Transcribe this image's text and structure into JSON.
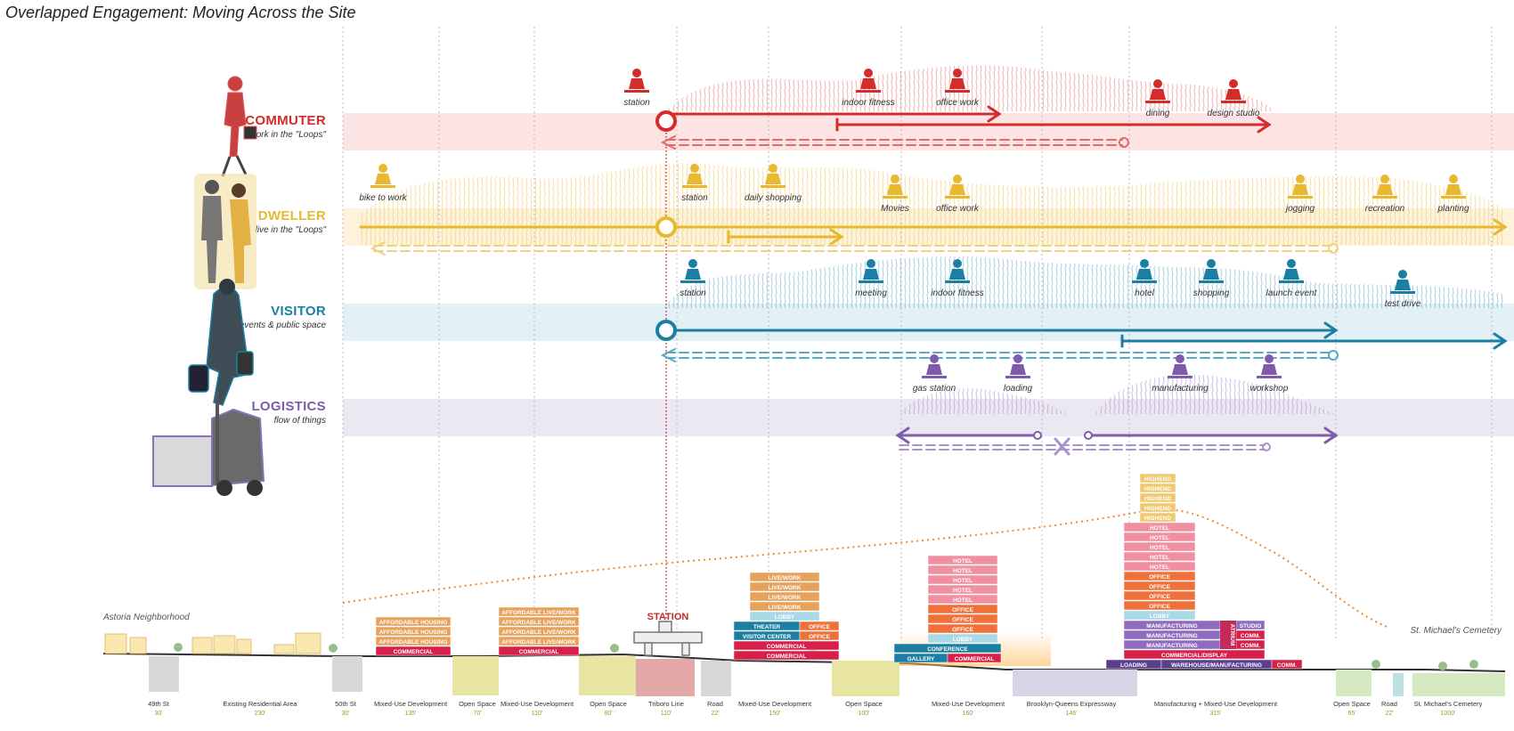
{
  "title": "Overlapped Engagement: Moving Across the Site",
  "colors": {
    "commuter": "#d42b2b",
    "dweller": "#e8b830",
    "visitor": "#1a7fa3",
    "logistics": "#7e5cab",
    "station_line": "#d42b2b",
    "orange_dots": "#f08a2c"
  },
  "personas": [
    {
      "id": "commuter",
      "name": "COMMUTER",
      "subtitle": "work in the \"Loops\"",
      "icon": "walking-woman-icon",
      "color": "#d42b2b",
      "activities": [
        {
          "label": "station",
          "icon": "train-icon"
        },
        {
          "label": "indoor fitness",
          "icon": "pushup-icon"
        },
        {
          "label": "office work",
          "icon": "desk-worker-icon"
        },
        {
          "label": "dining",
          "icon": "dining-icon"
        },
        {
          "label": "design studio",
          "icon": "gear-head-icon"
        }
      ]
    },
    {
      "id": "dweller",
      "name": "DWELLER",
      "subtitle": "live in the \"Loops\"",
      "icon": "walking-couple-icon",
      "color": "#e8b830",
      "activities": [
        {
          "label": "bike to work",
          "icon": "bike-icon"
        },
        {
          "label": "station",
          "icon": "train-icon"
        },
        {
          "label": "daily shopping",
          "icon": "shopper-icon"
        },
        {
          "label": "Movies",
          "icon": "movie-audience-icon"
        },
        {
          "label": "office work",
          "icon": "desk-worker-icon"
        },
        {
          "label": "jogging",
          "icon": "jogger-icon"
        },
        {
          "label": "recreation",
          "icon": "recreation-icon"
        },
        {
          "label": "planting",
          "icon": "planting-icon"
        }
      ]
    },
    {
      "id": "visitor",
      "name": "VISITOR",
      "subtitle": "events & public space",
      "icon": "traveler-icon",
      "color": "#1a7fa3",
      "activities": [
        {
          "label": "station",
          "icon": "passengers-icon"
        },
        {
          "label": "meeting",
          "icon": "meeting-icon"
        },
        {
          "label": "indoor fitness",
          "icon": "weightlifter-icon"
        },
        {
          "label": "hotel",
          "icon": "bed-icon"
        },
        {
          "label": "shopping",
          "icon": "shopping-bag-icon"
        },
        {
          "label": "launch event",
          "icon": "presenter-icon"
        },
        {
          "label": "test drive",
          "icon": "car-driver-icon"
        }
      ]
    },
    {
      "id": "logistics",
      "name": "LOGISTICS",
      "subtitle": "flow of things",
      "icon": "forklift-icon",
      "color": "#7e5cab",
      "activities": [
        {
          "label": "gas station",
          "icon": "gas-car-icon"
        },
        {
          "label": "loading",
          "icon": "loading-icon"
        },
        {
          "label": "manufacturing",
          "icon": "gears-icon"
        },
        {
          "label": "workshop",
          "icon": "workshop-icon"
        }
      ]
    }
  ],
  "section": {
    "left_label": "Astoria Neighborhood",
    "right_label": "St. Michael's Cemetery",
    "station_label": "STATION",
    "buildings": [
      {
        "floors": [
          "AFFORDABLE HOUSING",
          "AFFORDABLE HOUSING",
          "AFFORDABLE HOUSING",
          "COMMERCIAL"
        ]
      },
      {
        "floors": [
          "AFFORDABLE LIVE/WORK",
          "AFFORDABLE LIVE/WORK",
          "AFFORDABLE LIVE/WORK",
          "AFFORDABLE LIVE/WORK",
          "COMMERCIAL"
        ]
      },
      {
        "floors": [
          "LIVE/WORK",
          "LIVE/WORK",
          "LIVE/WORK",
          "LIVE/WORK",
          "LOBBY",
          "THEATER",
          "OFFICE",
          "VISITOR CENTER",
          "OFFICE",
          "COMMERCIAL",
          "COMMERCIAL"
        ]
      },
      {
        "floors": [
          "HOTEL",
          "HOTEL",
          "HOTEL",
          "HOTEL",
          "HOTEL",
          "OFFICE",
          "OFFICE",
          "OFFICE",
          "LOBBY",
          "CONFERENCE",
          "GALLERY",
          "COMMERCIAL"
        ]
      },
      {
        "floors": [
          "HIGHEND",
          "HIGHEND",
          "HIGHEND",
          "HIGHEND",
          "HIGHEND",
          "HOTEL",
          "HOTEL",
          "HOTEL",
          "HOTEL",
          "HOTEL",
          "OFFICE",
          "OFFICE",
          "OFFICE",
          "OFFICE",
          "LOBBY",
          "MANUFACTURING",
          "STUDIO",
          "MANUFACTURING",
          "COMM.",
          "MANUFACTURING",
          "COMM.",
          "ATRIUM",
          "COMMERCIAL/DISPLAY",
          "LOADING",
          "WAREHOUSE/MANUFACTURING",
          "COMM."
        ]
      }
    ],
    "zones": [
      {
        "name": "49th St",
        "width": "30'"
      },
      {
        "name": "Existing Residential Area",
        "width": "230'"
      },
      {
        "name": "50th St",
        "width": "30'"
      },
      {
        "name": "Mixed-Use Development",
        "width": "135'"
      },
      {
        "name": "Open Space",
        "width": "70'"
      },
      {
        "name": "Mixed-Use Development",
        "width": "110'"
      },
      {
        "name": "Open Space",
        "width": "80'"
      },
      {
        "name": "Triboro Line",
        "width": "110'"
      },
      {
        "name": "Road",
        "width": "22'"
      },
      {
        "name": "Mixed-Use Development",
        "width": "150'"
      },
      {
        "name": "Open Space",
        "width": "100'"
      },
      {
        "name": "Mixed-Use Development",
        "width": "160'"
      },
      {
        "name": "Brooklyn-Queens Expressway",
        "width": "146'"
      },
      {
        "name": "Manufacturing + Mixed-Use Development",
        "width": "315'"
      },
      {
        "name": "Open Space",
        "width": "65'"
      },
      {
        "name": "Road",
        "width": "22'"
      },
      {
        "name": "St. Michael's Cemetery",
        "width": "1000'"
      }
    ]
  }
}
